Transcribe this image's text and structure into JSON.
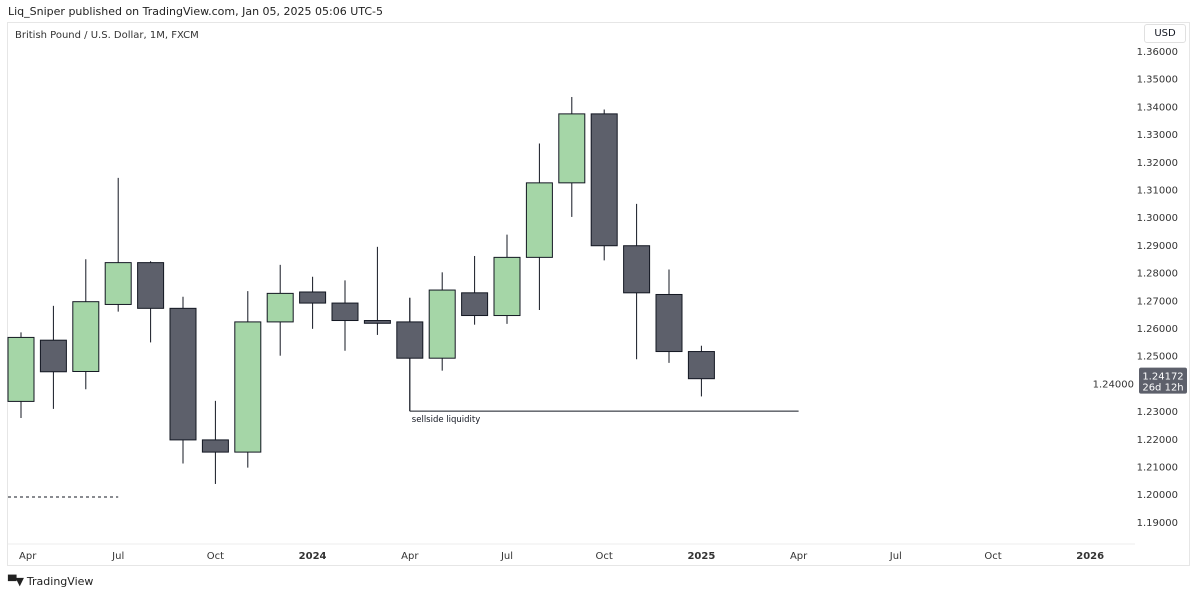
{
  "header": {
    "published": "Liq_Sniper published on TradingView.com, Jan 05, 2025 05:06 UTC-5",
    "symbol_title": "British Pound / U.S. Dollar, 1M, FXCM",
    "currency_button": "USD"
  },
  "footer": {
    "brand": "TradingView"
  },
  "colors": {
    "up": "#a5d6a7",
    "down": "#5d606b",
    "border": "#131722"
  },
  "chart_data": {
    "type": "candlestick",
    "title": "British Pound / U.S. Dollar, 1M, FXCM",
    "ylim": [
      1.185,
      1.362
    ],
    "y_ticks": [
      "1.36000",
      "1.35000",
      "1.34000",
      "1.33000",
      "1.32000",
      "1.31000",
      "1.30000",
      "1.29000",
      "1.28000",
      "1.27000",
      "1.26000",
      "1.25000",
      "1.24000",
      "1.23000",
      "1.22000",
      "1.21000",
      "1.20000",
      "1.19000"
    ],
    "x_ticks": [
      {
        "label": "Apr",
        "bold": false
      },
      {
        "label": "Jul",
        "bold": false
      },
      {
        "label": "Oct",
        "bold": false
      },
      {
        "label": "2024",
        "bold": true
      },
      {
        "label": "Apr",
        "bold": false
      },
      {
        "label": "Jul",
        "bold": false
      },
      {
        "label": "Oct",
        "bold": false
      },
      {
        "label": "2025",
        "bold": true
      },
      {
        "label": "Apr",
        "bold": false
      },
      {
        "label": "Jul",
        "bold": false
      },
      {
        "label": "Oct",
        "bold": false
      },
      {
        "label": "2026",
        "bold": true
      }
    ],
    "candles": [
      {
        "month": "2023-04",
        "o": 1.2335,
        "h": 1.2584,
        "l": 1.2275,
        "c": 1.2566
      },
      {
        "month": "2023-05",
        "o": 1.2556,
        "h": 1.268,
        "l": 1.2308,
        "c": 1.2442
      },
      {
        "month": "2023-06",
        "o": 1.2443,
        "h": 1.2848,
        "l": 1.2379,
        "c": 1.2695
      },
      {
        "month": "2023-07",
        "o": 1.2685,
        "h": 1.3142,
        "l": 1.2659,
        "c": 1.2836
      },
      {
        "month": "2023-08",
        "o": 1.2836,
        "h": 1.2841,
        "l": 1.2548,
        "c": 1.2671
      },
      {
        "month": "2023-09",
        "o": 1.2671,
        "h": 1.2713,
        "l": 1.2111,
        "c": 1.2196
      },
      {
        "month": "2023-10",
        "o": 1.2196,
        "h": 1.2337,
        "l": 1.2037,
        "c": 1.2152
      },
      {
        "month": "2023-11",
        "o": 1.2152,
        "h": 1.2733,
        "l": 1.2096,
        "c": 1.2622
      },
      {
        "month": "2023-12",
        "o": 1.2622,
        "h": 1.2828,
        "l": 1.25,
        "c": 1.2725
      },
      {
        "month": "2024-01",
        "o": 1.273,
        "h": 1.2785,
        "l": 1.2597,
        "c": 1.269
      },
      {
        "month": "2024-02",
        "o": 1.269,
        "h": 1.2772,
        "l": 1.2518,
        "c": 1.2627
      },
      {
        "month": "2024-03",
        "o": 1.2627,
        "h": 1.2893,
        "l": 1.2575,
        "c": 1.2617
      },
      {
        "month": "2024-04",
        "o": 1.2622,
        "h": 1.2709,
        "l": 1.23,
        "c": 1.2491
      },
      {
        "month": "2024-05",
        "o": 1.2491,
        "h": 1.2801,
        "l": 1.2446,
        "c": 1.2737
      },
      {
        "month": "2024-06",
        "o": 1.2727,
        "h": 1.286,
        "l": 1.2612,
        "c": 1.2645
      },
      {
        "month": "2024-07",
        "o": 1.2645,
        "h": 1.2937,
        "l": 1.2615,
        "c": 1.2855
      },
      {
        "month": "2024-08",
        "o": 1.2855,
        "h": 1.3266,
        "l": 1.2665,
        "c": 1.3124
      },
      {
        "month": "2024-09",
        "o": 1.3124,
        "h": 1.3434,
        "l": 1.3001,
        "c": 1.3373
      },
      {
        "month": "2024-10",
        "o": 1.3373,
        "h": 1.3389,
        "l": 1.2844,
        "c": 1.2897
      },
      {
        "month": "2024-11",
        "o": 1.2897,
        "h": 1.3048,
        "l": 1.2487,
        "c": 1.2727
      },
      {
        "month": "2024-12",
        "o": 1.2721,
        "h": 1.2811,
        "l": 1.2474,
        "c": 1.2515
      },
      {
        "month": "2025-01",
        "o": 1.2515,
        "h": 1.2536,
        "l": 1.2353,
        "c": 1.2417
      }
    ],
    "last_price": {
      "value": "1.24172",
      "countdown": "26d 12h",
      "price": 1.24172
    },
    "annotations": [
      {
        "type": "hline",
        "label": "sellside liquidity",
        "price": 1.23,
        "from_month": "2024-04",
        "to_month": "2025-04"
      },
      {
        "type": "dashed-hline",
        "price": 1.199,
        "from_month": "2023-04",
        "to_month": "2023-07"
      }
    ]
  }
}
